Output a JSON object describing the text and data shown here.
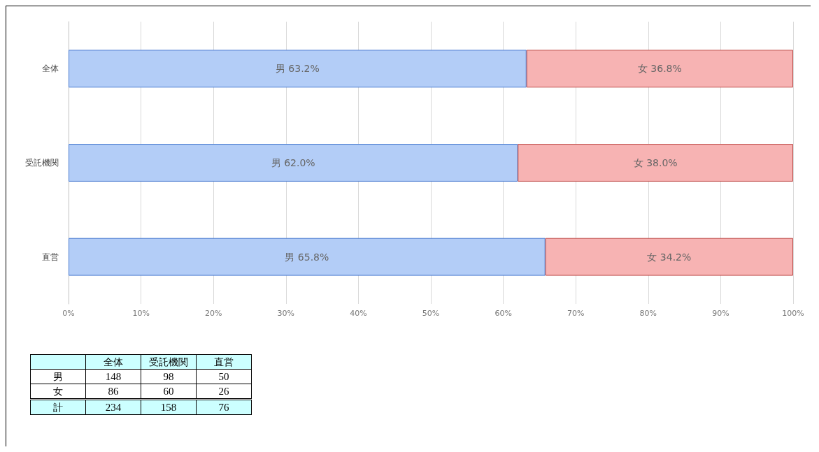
{
  "chart_data": [
    {
      "type": "bar",
      "orientation": "horizontal",
      "stacked": true,
      "categories": [
        "全体",
        "受託機関",
        "直営"
      ],
      "series": [
        {
          "name": "男",
          "color": "#b3cdf7",
          "values": [
            63.2,
            62.0,
            65.8
          ],
          "value_labels": [
            "63.2%",
            "62.0%",
            "65.8%"
          ]
        },
        {
          "name": "女",
          "color": "#f7b3b3",
          "values": [
            36.8,
            38.0,
            34.2
          ],
          "value_labels": [
            "36.8%",
            "38.0%",
            "34.2%"
          ]
        }
      ],
      "xlim": [
        0,
        100
      ],
      "xticks": [
        {
          "value": 0,
          "label": "0%"
        },
        {
          "value": 10,
          "label": "10%"
        },
        {
          "value": 20,
          "label": "20%"
        },
        {
          "value": 30,
          "label": "30%"
        },
        {
          "value": 40,
          "label": "40%"
        },
        {
          "value": 50,
          "label": "50%"
        },
        {
          "value": 60,
          "label": "60%"
        },
        {
          "value": 70,
          "label": "70%"
        },
        {
          "value": 80,
          "label": "80%"
        },
        {
          "value": 90,
          "label": "90%"
        },
        {
          "value": 100,
          "label": "100%"
        }
      ],
      "grid": "x",
      "legend": false
    },
    {
      "type": "other",
      "categories": [
        "全体",
        "受託機関",
        "直営"
      ],
      "series": [
        {
          "name": "男",
          "values": [
            148,
            98,
            50
          ]
        },
        {
          "name": "女",
          "values": [
            86,
            60,
            26
          ]
        },
        {
          "name": "計",
          "values": [
            234,
            158,
            76
          ]
        }
      ],
      "data_labels": true
    }
  ]
}
